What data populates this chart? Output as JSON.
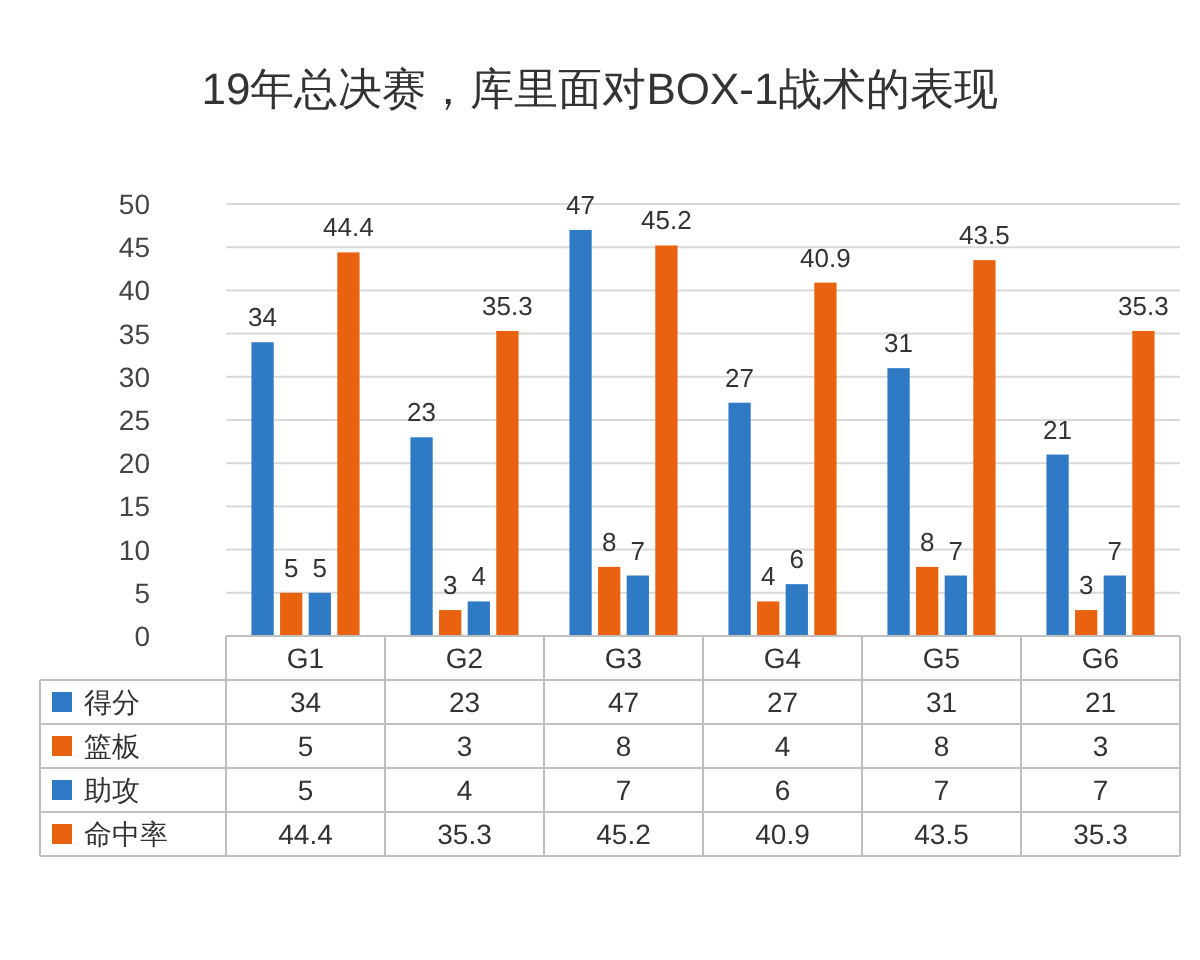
{
  "chart_data": {
    "type": "bar",
    "title": "19年总决赛，库里面对BOX-1战术的表现",
    "categories": [
      "G1",
      "G2",
      "G3",
      "G4",
      "G5",
      "G6"
    ],
    "series": [
      {
        "name": "得分",
        "color": "#2e7ac4",
        "values": [
          34,
          23,
          47,
          27,
          31,
          21
        ],
        "value_labels": [
          "34",
          "23",
          "47",
          "27",
          "31",
          "21"
        ]
      },
      {
        "name": "篮板",
        "color": "#e8620f",
        "values": [
          5,
          3,
          8,
          4,
          8,
          3
        ],
        "value_labels": [
          "5",
          "3",
          "8",
          "4",
          "8",
          "3"
        ]
      },
      {
        "name": "助攻",
        "color": "#2e7ac4",
        "values": [
          5,
          4,
          7,
          6,
          7,
          7
        ],
        "value_labels": [
          "5",
          "4",
          "7",
          "6",
          "7",
          "7"
        ]
      },
      {
        "name": "命中率",
        "color": "#e8620f",
        "values": [
          44.4,
          35.3,
          45.2,
          40.9,
          43.5,
          35.3
        ],
        "value_labels": [
          "44.4",
          "35.3",
          "45.2",
          "40.9",
          "43.5",
          "35.3"
        ]
      }
    ],
    "annotations": [
      "34",
      "23",
      "47",
      "27",
      "31",
      "21",
      "5",
      "3",
      "8",
      "4",
      "8",
      "3",
      "5",
      "4",
      "7",
      "6",
      "7",
      "7",
      "44.4",
      "35.3",
      "45.2",
      "40.9",
      "43.5",
      "35.3"
    ],
    "ylim": [
      0,
      50
    ],
    "yticks": [
      0,
      5,
      10,
      15,
      20,
      25,
      30,
      35,
      40,
      45,
      50
    ],
    "grid": "y",
    "legend": "bottom"
  }
}
